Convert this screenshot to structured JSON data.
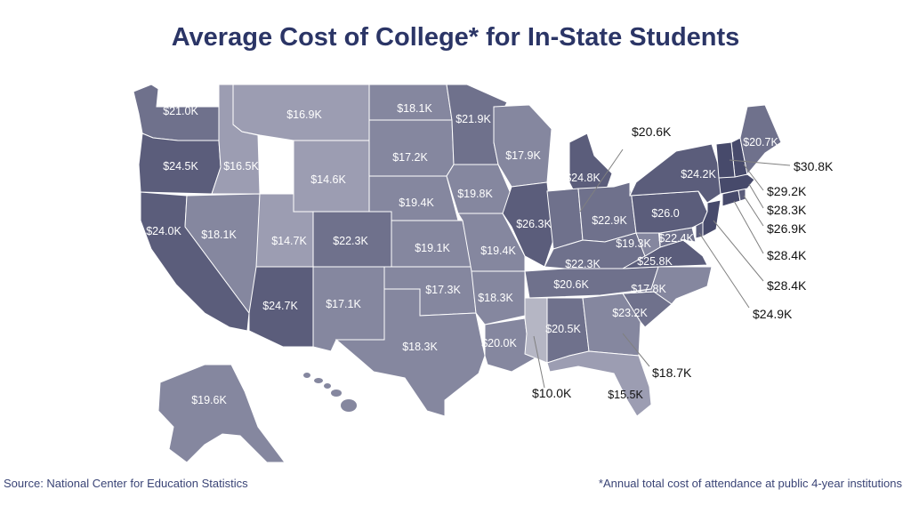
{
  "title": "Average Cost of College* for In-State Students",
  "source": "Source: National Center for Education Statistics",
  "footnote": "*Annual total cost of attendance at public 4-year institutions",
  "colors": {
    "title": "#2b3566",
    "border": "#ffffff",
    "callout_line": "#808080",
    "scale": [
      "#b5b6c4",
      "#9c9db2",
      "#85879f",
      "#6f718c",
      "#5b5d7b",
      "#474a6b"
    ]
  },
  "states": [
    {
      "code": "WA",
      "cost": "$21.0K",
      "value": 21.0
    },
    {
      "code": "OR",
      "cost": "$24.5K",
      "value": 24.5
    },
    {
      "code": "CA",
      "cost": "$24.0K",
      "value": 24.0
    },
    {
      "code": "ID",
      "cost": "$16.5K",
      "value": 16.5
    },
    {
      "code": "NV",
      "cost": "$18.1K",
      "value": 18.1
    },
    {
      "code": "MT",
      "cost": "$16.9K",
      "value": 16.9
    },
    {
      "code": "WY",
      "cost": "$14.6K",
      "value": 14.6
    },
    {
      "code": "UT",
      "cost": "$14.7K",
      "value": 14.7
    },
    {
      "code": "AZ",
      "cost": "$24.7K",
      "value": 24.7
    },
    {
      "code": "CO",
      "cost": "$22.3K",
      "value": 22.3
    },
    {
      "code": "NM",
      "cost": "$17.1K",
      "value": 17.1
    },
    {
      "code": "ND",
      "cost": "$18.1K",
      "value": 18.1
    },
    {
      "code": "SD",
      "cost": "$17.2K",
      "value": 17.2
    },
    {
      "code": "NE",
      "cost": "$19.4K",
      "value": 19.4
    },
    {
      "code": "KS",
      "cost": "$19.1K",
      "value": 19.1
    },
    {
      "code": "OK",
      "cost": "$17.3K",
      "value": 17.3
    },
    {
      "code": "TX",
      "cost": "$18.3K",
      "value": 18.3
    },
    {
      "code": "MN",
      "cost": "$21.9K",
      "value": 21.9
    },
    {
      "code": "IA",
      "cost": "$19.8K",
      "value": 19.8
    },
    {
      "code": "MO",
      "cost": "$19.4K",
      "value": 19.4
    },
    {
      "code": "AR",
      "cost": "$18.3K",
      "value": 18.3
    },
    {
      "code": "LA",
      "cost": "$20.0K",
      "value": 20.0
    },
    {
      "code": "WI",
      "cost": "$17.9K",
      "value": 17.9
    },
    {
      "code": "IL",
      "cost": "$26.3K",
      "value": 26.3
    },
    {
      "code": "MI",
      "cost": "$24.8K",
      "value": 24.8
    },
    {
      "code": "IN",
      "cost": "$20.6K",
      "value": 20.6
    },
    {
      "code": "OH",
      "cost": "$22.9K",
      "value": 22.9
    },
    {
      "code": "KY",
      "cost": "$22.3K",
      "value": 22.3
    },
    {
      "code": "TN",
      "cost": "$20.6K",
      "value": 20.6
    },
    {
      "code": "MS",
      "cost": "$10.0K",
      "value": 10.0
    },
    {
      "code": "AL",
      "cost": "$20.5K",
      "value": 20.5
    },
    {
      "code": "GA",
      "cost": "$18.7K",
      "value": 18.7
    },
    {
      "code": "FL",
      "cost": "$15.5K",
      "value": 15.5
    },
    {
      "code": "SC",
      "cost": "$23.2K",
      "value": 23.2
    },
    {
      "code": "NC",
      "cost": "$17.8K",
      "value": 17.8
    },
    {
      "code": "VA",
      "cost": "$25.8K",
      "value": 25.8
    },
    {
      "code": "WV",
      "cost": "$19.3K",
      "value": 19.3
    },
    {
      "code": "MD",
      "cost": "$22.4K",
      "value": 22.4
    },
    {
      "code": "DE",
      "cost": "$24.9K",
      "value": 24.9
    },
    {
      "code": "PA",
      "cost": "$26.0",
      "value": 26.0
    },
    {
      "code": "NY",
      "cost": "$24.2K",
      "value": 24.2
    },
    {
      "code": "NJ",
      "cost": "$28.4K",
      "value": 28.4
    },
    {
      "code": "CT",
      "cost": "$28.4K",
      "value": 28.4
    },
    {
      "code": "RI",
      "cost": "$26.9K",
      "value": 26.9
    },
    {
      "code": "MA",
      "cost": "$28.3K",
      "value": 28.3
    },
    {
      "code": "NH",
      "cost": "$29.2K",
      "value": 29.2
    },
    {
      "code": "VT",
      "cost": "$30.8K",
      "value": 30.8
    },
    {
      "code": "ME",
      "cost": "$20.7K",
      "value": 20.7
    },
    {
      "code": "AK",
      "cost": "$19.6K",
      "value": 19.6
    },
    {
      "code": "HI",
      "cost": "",
      "value": null
    }
  ]
}
